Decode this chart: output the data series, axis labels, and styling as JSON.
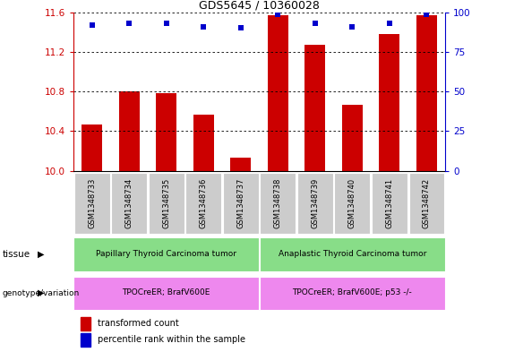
{
  "title": "GDS5645 / 10360028",
  "samples": [
    "GSM1348733",
    "GSM1348734",
    "GSM1348735",
    "GSM1348736",
    "GSM1348737",
    "GSM1348738",
    "GSM1348739",
    "GSM1348740",
    "GSM1348741",
    "GSM1348742"
  ],
  "bar_values": [
    10.47,
    10.8,
    10.78,
    10.57,
    10.13,
    11.57,
    11.27,
    10.67,
    11.38,
    11.57
  ],
  "percentile_values": [
    92,
    93,
    93,
    91,
    90,
    99,
    93,
    91,
    93,
    99
  ],
  "ylim_left": [
    10,
    11.6
  ],
  "ylim_right": [
    0,
    100
  ],
  "yticks_left": [
    10,
    10.4,
    10.8,
    11.2,
    11.6
  ],
  "yticks_right": [
    0,
    25,
    50,
    75,
    100
  ],
  "bar_color": "#cc0000",
  "marker_color": "#0000cc",
  "tissue_labels": [
    "Papillary Thyroid Carcinoma tumor",
    "Anaplastic Thyroid Carcinoma tumor"
  ],
  "genotype_labels": [
    "TPOCreER; BrafV600E",
    "TPOCreER; BrafV600E; p53 -/-"
  ],
  "tissue_color": "#88dd88",
  "genotype_color": "#ee88ee",
  "label_bg_color": "#cccccc",
  "legend_bar_label": "transformed count",
  "legend_marker_label": "percentile rank within the sample"
}
